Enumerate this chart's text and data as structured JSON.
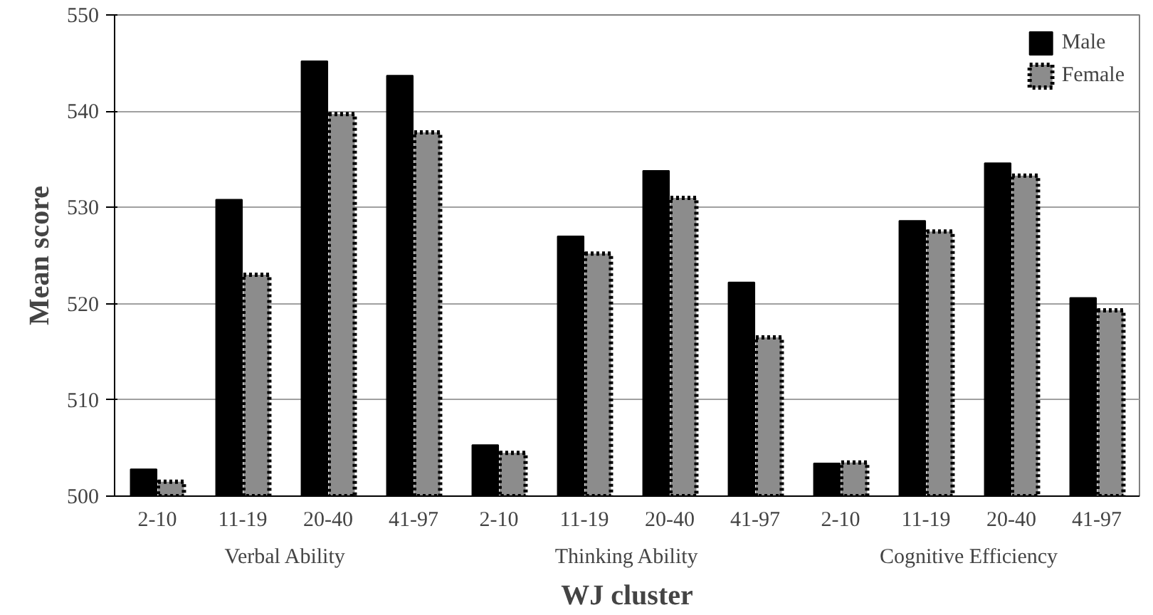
{
  "chart_data": {
    "type": "bar",
    "xlabel": "WJ cluster",
    "ylabel": "Mean score",
    "categories": [
      "2-10",
      "11-19",
      "20-40",
      "41-97",
      "2-10",
      "11-19",
      "20-40",
      "41-97",
      "2-10",
      "11-19",
      "20-40",
      "41-97"
    ],
    "series": [
      {
        "name": "Male",
        "color": "#000000",
        "values": [
          502.8,
          530.8,
          545.2,
          543.7,
          505.3,
          527.0,
          533.8,
          522.2,
          503.4,
          528.6,
          534.6,
          520.6
        ]
      },
      {
        "name": "Female",
        "color": "#8c8c8c",
        "line_style": "dotted",
        "values": [
          501.5,
          523.0,
          539.7,
          537.8,
          504.5,
          525.2,
          531.0,
          516.5,
          503.5,
          527.5,
          533.3,
          519.3
        ]
      }
    ],
    "annotations": [
      "Verbal Ability",
      "Thinking Ability",
      "Cognitive Efficiency"
    ],
    "ylim": [
      500,
      550
    ],
    "yticks": [
      500,
      510,
      520,
      530,
      540,
      550
    ],
    "grid": "y",
    "legend": "top right"
  }
}
